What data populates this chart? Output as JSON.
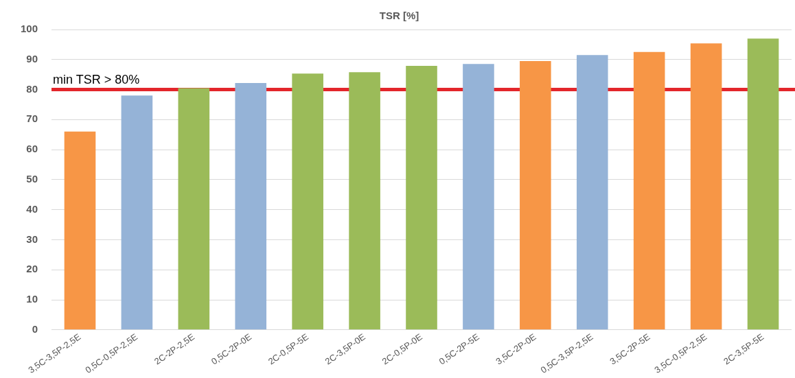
{
  "chart_data": {
    "type": "bar",
    "title": "TSR [%]",
    "categories": [
      "3,5C-3,5P-2,5E",
      "0,5C-0,5P-2,5E",
      "2C-2P-2,5E",
      "0,5C-2P-0E",
      "2C-0,5P-5E",
      "2C-3,5P-0E",
      "2C-0,5P-0E",
      "0,5C-2P-5E",
      "3,5C-2P-0E",
      "0,5C-3,5P-2,5E",
      "3,5C-2P-5E",
      "3,5C-0,5P-2,5E",
      "2C-3,5P-5E"
    ],
    "values": [
      66,
      78,
      80.5,
      82.2,
      85.3,
      85.8,
      87.9,
      88.5,
      89.5,
      91.5,
      92.5,
      95.4,
      97
    ],
    "colors": [
      "#f79646",
      "#95b3d7",
      "#9bbb59",
      "#95b3d7",
      "#9bbb59",
      "#9bbb59",
      "#9bbb59",
      "#95b3d7",
      "#f79646",
      "#95b3d7",
      "#f79646",
      "#f79646",
      "#9bbb59"
    ],
    "ylim": [
      0,
      100
    ],
    "yticks": [
      0,
      10,
      20,
      30,
      40,
      50,
      60,
      70,
      80,
      90,
      100
    ],
    "grid": "y",
    "ref_lines": [
      {
        "axis": "y",
        "value": 80,
        "label": "min TSR > 80%",
        "color": "#e3262b"
      }
    ]
  }
}
